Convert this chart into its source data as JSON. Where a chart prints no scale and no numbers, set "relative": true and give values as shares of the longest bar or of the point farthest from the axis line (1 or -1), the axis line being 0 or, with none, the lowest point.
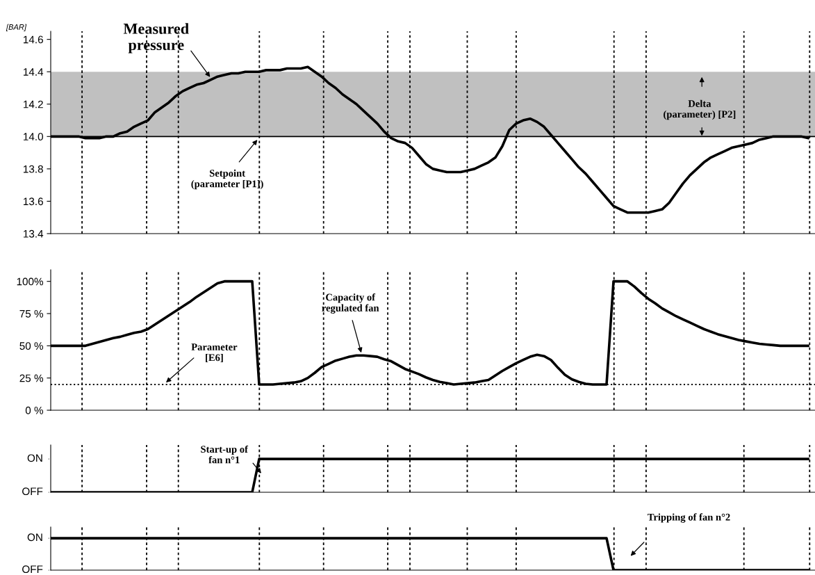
{
  "chart_data": [
    {
      "type": "line",
      "ylabel": "[BAR]",
      "ylim": [
        13.4,
        14.65
      ],
      "yticks": [
        13.4,
        13.6,
        13.8,
        {
          "value": 14.0,
          "label": "14.0"
        },
        14.2,
        14.4,
        14.6
      ],
      "tick_labels": "y",
      "grid": "x",
      "categories": [
        null,
        null,
        null,
        null,
        null,
        null,
        null,
        null,
        null,
        null,
        null,
        null,
        null,
        null,
        null,
        null,
        null,
        null,
        null,
        null,
        null,
        null,
        null,
        null,
        null,
        null,
        null,
        null,
        null,
        null,
        null,
        null,
        null,
        null,
        null,
        null,
        null,
        null,
        null,
        null,
        null,
        null,
        null,
        null,
        null,
        null,
        null,
        null,
        null,
        null,
        null,
        null,
        null,
        null,
        null,
        null,
        null,
        null,
        null,
        null,
        null,
        null,
        null,
        null,
        null,
        null,
        null,
        null,
        null,
        null,
        null,
        null,
        null,
        null,
        null,
        null,
        null,
        null,
        null,
        null,
        null,
        null,
        null,
        null,
        null,
        null,
        null,
        null,
        null,
        null,
        null,
        null,
        null,
        null,
        null,
        null,
        null,
        null,
        null,
        null,
        null,
        null,
        null,
        null,
        null,
        null,
        null,
        null,
        null,
        null
      ],
      "bands": [
        {
          "axis": "y",
          "from": 14.0,
          "to": 14.4,
          "color": "#c0c0c0"
        }
      ],
      "ref_lines": [
        {
          "axis": "y",
          "value": 14.0,
          "color": "#000000",
          "line_style": "solid"
        }
      ],
      "series": [
        {
          "color": "#000000",
          "values": [
            14.0,
            14.0,
            14.0,
            14.0,
            14.0,
            13.99,
            13.99,
            13.99,
            14.0,
            14.0,
            14.02,
            14.03,
            14.06,
            14.08,
            14.1,
            14.15,
            14.18,
            14.21,
            14.25,
            14.28,
            14.3,
            14.32,
            14.33,
            14.35,
            14.37,
            14.38,
            14.39,
            14.39,
            14.4,
            14.4,
            14.4,
            14.41,
            14.41,
            14.41,
            14.42,
            14.42,
            14.42,
            14.43,
            14.4,
            14.37,
            14.33,
            14.3,
            14.26,
            14.23,
            14.2,
            14.16,
            14.12,
            14.08,
            14.03,
            13.99,
            13.97,
            13.96,
            13.93,
            13.88,
            13.83,
            13.8,
            13.79,
            13.78,
            13.78,
            13.78,
            13.79,
            13.8,
            13.82,
            13.84,
            13.87,
            13.94,
            14.04,
            14.08,
            14.1,
            14.11,
            14.09,
            14.06,
            14.01,
            13.96,
            13.91,
            13.86,
            13.81,
            13.77,
            13.72,
            13.67,
            13.62,
            13.57,
            13.55,
            13.53,
            13.53,
            13.53,
            13.53,
            13.54,
            13.55,
            13.59,
            13.65,
            13.71,
            13.76,
            13.8,
            13.84,
            13.87,
            13.89,
            13.91,
            13.93,
            13.94,
            13.95,
            13.96,
            13.98,
            13.99,
            14.0,
            14.0,
            14.0,
            14.0,
            14.0,
            13.99
          ]
        }
      ],
      "annotations": [
        "Measured\npressure",
        "Setpoint\n(parameter [P1])",
        "Delta\n(parameter) [P2]"
      ]
    },
    {
      "type": "line",
      "ylim": [
        0,
        109
      ],
      "tick_labels": "y",
      "grid": "x",
      "yticks": [
        {
          "value": 0,
          "label": "0 %"
        },
        {
          "value": 25,
          "label": "25 %"
        },
        {
          "value": 50,
          "label": "50 %"
        },
        {
          "value": 75,
          "label": "75 %"
        },
        {
          "value": 100,
          "label": "100%"
        }
      ],
      "categories": [
        null,
        null,
        null,
        null,
        null,
        null,
        null,
        null,
        null,
        null,
        null,
        null,
        null,
        null,
        null,
        null,
        null,
        null,
        null,
        null,
        null,
        null,
        null,
        null,
        null,
        null,
        null,
        null,
        null,
        null,
        null,
        null,
        null,
        null,
        null,
        null,
        null,
        null,
        null,
        null,
        null,
        null,
        null,
        null,
        null,
        null,
        null,
        null,
        null,
        null,
        null,
        null,
        null,
        null,
        null,
        null,
        null,
        null,
        null,
        null,
        null,
        null,
        null,
        null,
        null,
        null,
        null,
        null,
        null,
        null,
        null,
        null,
        null,
        null,
        null,
        null,
        null,
        null,
        null,
        null,
        null,
        null,
        null,
        null,
        null,
        null,
        null,
        null,
        null,
        null,
        null,
        null,
        null,
        null,
        null,
        null,
        null,
        null,
        null,
        null,
        null,
        null,
        null,
        null,
        null,
        null,
        null,
        null,
        null,
        null
      ],
      "ref_lines": [
        {
          "axis": "y",
          "value": 20,
          "color": "#000000",
          "line_style": "dotted"
        }
      ],
      "series": [
        {
          "color": "#000000",
          "values": [
            50,
            50,
            50,
            50,
            50,
            50,
            51.5,
            53,
            54.5,
            56,
            57,
            58.5,
            60,
            61,
            63,
            66.5,
            70,
            73.5,
            77,
            80.5,
            84,
            88,
            91.5,
            95,
            98.5,
            100,
            100,
            100,
            100,
            100,
            20,
            20,
            20,
            20.5,
            21,
            21.5,
            22.5,
            25,
            29,
            33.5,
            36,
            38.5,
            40,
            41.5,
            42.5,
            42.5,
            42,
            41.5,
            39.5,
            38,
            35,
            32,
            30,
            28,
            25.5,
            23.5,
            22,
            21,
            20,
            20.5,
            21,
            21.5,
            22.5,
            23.5,
            27,
            30.5,
            33.5,
            36.5,
            39,
            41.5,
            43,
            42,
            39,
            33,
            27.5,
            24,
            22,
            20.5,
            20,
            20,
            20,
            100,
            100,
            100,
            96,
            91,
            86.5,
            83,
            79,
            76,
            73,
            70.5,
            68,
            65.5,
            63,
            61,
            59,
            57.5,
            56,
            54.5,
            53.5,
            52.5,
            51.5,
            51,
            50.5,
            50,
            50,
            50,
            50,
            50
          ]
        }
      ],
      "annotations": [
        "Parameter\n[E6]",
        "Capacity of\nregulated fan"
      ]
    },
    {
      "type": "line",
      "relative": true,
      "grid": "x",
      "categories": [
        null,
        null,
        null,
        null,
        null,
        null,
        null,
        null,
        null,
        null,
        null,
        null,
        null,
        null,
        null,
        null,
        null,
        null,
        null,
        null,
        null,
        null,
        null,
        null,
        null,
        null,
        null,
        null,
        null,
        null,
        null,
        null,
        null,
        null,
        null,
        null,
        null,
        null,
        null,
        null,
        null,
        null,
        null,
        null,
        null,
        null,
        null,
        null,
        null,
        null,
        null,
        null,
        null,
        null,
        null,
        null,
        null,
        null,
        null,
        null,
        null,
        null,
        null,
        null,
        null,
        null,
        null,
        null,
        null,
        null,
        null,
        null,
        null,
        null,
        null,
        null,
        null,
        null,
        null,
        null,
        null,
        null,
        null,
        null,
        null,
        null,
        null,
        null,
        null,
        null,
        null,
        null,
        null,
        null,
        null,
        null,
        null,
        null,
        null,
        null,
        null,
        null,
        null,
        null,
        null,
        null,
        null,
        null,
        null,
        null
      ],
      "series": [
        {
          "color": "#000000",
          "values": [
            0,
            0,
            0,
            0,
            0,
            0,
            0,
            0,
            0,
            0,
            0,
            0,
            0,
            0,
            0,
            0,
            0,
            0,
            0,
            0,
            0,
            0,
            0,
            0,
            0,
            0,
            0,
            0,
            0,
            0,
            1,
            1,
            1,
            1,
            1,
            1,
            1,
            1,
            1,
            1,
            1,
            1,
            1,
            1,
            1,
            1,
            1,
            1,
            1,
            1,
            1,
            1,
            1,
            1,
            1,
            1,
            1,
            1,
            1,
            1,
            1,
            1,
            1,
            1,
            1,
            1,
            1,
            1,
            1,
            1,
            1,
            1,
            1,
            1,
            1,
            1,
            1,
            1,
            1,
            1,
            1,
            1,
            1,
            1,
            1,
            1,
            1,
            1,
            1,
            1,
            1,
            1,
            1,
            1,
            1,
            1,
            1,
            1,
            1,
            1,
            1,
            1,
            1,
            1,
            1,
            1,
            1,
            1,
            1,
            1
          ]
        }
      ],
      "annotations": [
        "Start-up of\nfan n°1",
        "ON",
        "OFF"
      ]
    },
    {
      "type": "line",
      "relative": true,
      "grid": "x",
      "categories": [
        null,
        null,
        null,
        null,
        null,
        null,
        null,
        null,
        null,
        null,
        null,
        null,
        null,
        null,
        null,
        null,
        null,
        null,
        null,
        null,
        null,
        null,
        null,
        null,
        null,
        null,
        null,
        null,
        null,
        null,
        null,
        null,
        null,
        null,
        null,
        null,
        null,
        null,
        null,
        null,
        null,
        null,
        null,
        null,
        null,
        null,
        null,
        null,
        null,
        null,
        null,
        null,
        null,
        null,
        null,
        null,
        null,
        null,
        null,
        null,
        null,
        null,
        null,
        null,
        null,
        null,
        null,
        null,
        null,
        null,
        null,
        null,
        null,
        null,
        null,
        null,
        null,
        null,
        null,
        null,
        null,
        null,
        null,
        null,
        null,
        null,
        null,
        null,
        null,
        null,
        null,
        null,
        null,
        null,
        null,
        null,
        null,
        null,
        null,
        null,
        null,
        null,
        null,
        null,
        null,
        null,
        null,
        null,
        null,
        null
      ],
      "series": [
        {
          "color": "#000000",
          "values": [
            1,
            1,
            1,
            1,
            1,
            1,
            1,
            1,
            1,
            1,
            1,
            1,
            1,
            1,
            1,
            1,
            1,
            1,
            1,
            1,
            1,
            1,
            1,
            1,
            1,
            1,
            1,
            1,
            1,
            1,
            1,
            1,
            1,
            1,
            1,
            1,
            1,
            1,
            1,
            1,
            1,
            1,
            1,
            1,
            1,
            1,
            1,
            1,
            1,
            1,
            1,
            1,
            1,
            1,
            1,
            1,
            1,
            1,
            1,
            1,
            1,
            1,
            1,
            1,
            1,
            1,
            1,
            1,
            1,
            1,
            1,
            1,
            1,
            1,
            1,
            1,
            1,
            1,
            1,
            1,
            1,
            0,
            0,
            0,
            0,
            0,
            0,
            0,
            0,
            0,
            0,
            0,
            0,
            0,
            0,
            0,
            0,
            0,
            0,
            0,
            0,
            0,
            0,
            0,
            0,
            0,
            0,
            0,
            0,
            0
          ]
        }
      ],
      "annotations": [
        "Tripping of fan n°2",
        "ON",
        "OFF"
      ]
    }
  ]
}
